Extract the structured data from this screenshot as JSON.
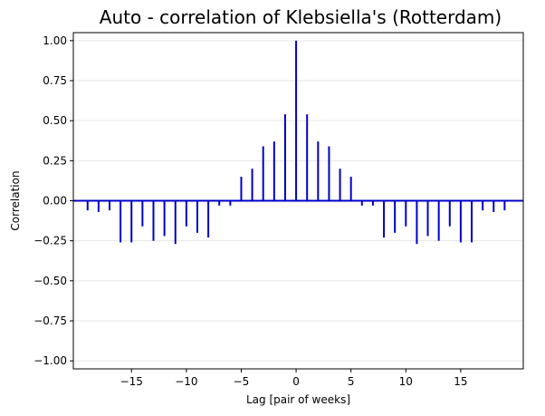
{
  "chart_data": {
    "type": "bar",
    "title": "Auto - correlation of Klebsiella's (Rotterdam)",
    "xlabel": "Lag [pair of weeks]",
    "ylabel": "Correlation",
    "xlim": [
      -20.3,
      20.7
    ],
    "ylim": [
      -1.05,
      1.05
    ],
    "xticks": [
      -15,
      -10,
      -5,
      0,
      5,
      10,
      15
    ],
    "yticks": [
      -1.0,
      -0.75,
      -0.5,
      -0.25,
      0.0,
      0.25,
      0.5,
      0.75,
      1.0
    ],
    "ytick_labels": [
      "−1.00",
      "−0.75",
      "−0.50",
      "−0.25",
      "0.00",
      "0.25",
      "0.50",
      "0.75",
      "1.00"
    ],
    "xtick_labels": [
      "−15",
      "−10",
      "−5",
      "0",
      "5",
      "10",
      "15"
    ],
    "grid": "horizontal",
    "bar_color": "#0000cc",
    "zero_line_color": "#0000cc",
    "lags": [
      -19,
      -18,
      -17,
      -16,
      -15,
      -14,
      -13,
      -12,
      -11,
      -10,
      -9,
      -8,
      -7,
      -6,
      -5,
      -4,
      -3,
      -2,
      -1,
      0,
      1,
      2,
      3,
      4,
      5,
      6,
      7,
      8,
      9,
      10,
      11,
      12,
      13,
      14,
      15,
      16,
      17,
      18,
      19
    ],
    "values": [
      -0.06,
      -0.07,
      -0.06,
      -0.26,
      -0.26,
      -0.16,
      -0.25,
      -0.22,
      -0.27,
      -0.16,
      -0.2,
      -0.23,
      -0.03,
      -0.03,
      0.15,
      0.2,
      0.34,
      0.37,
      0.54,
      1.0,
      0.54,
      0.37,
      0.34,
      0.2,
      0.15,
      -0.03,
      -0.03,
      -0.23,
      -0.2,
      -0.16,
      -0.27,
      -0.22,
      -0.25,
      -0.16,
      -0.26,
      -0.26,
      -0.06,
      -0.07,
      -0.06
    ]
  }
}
